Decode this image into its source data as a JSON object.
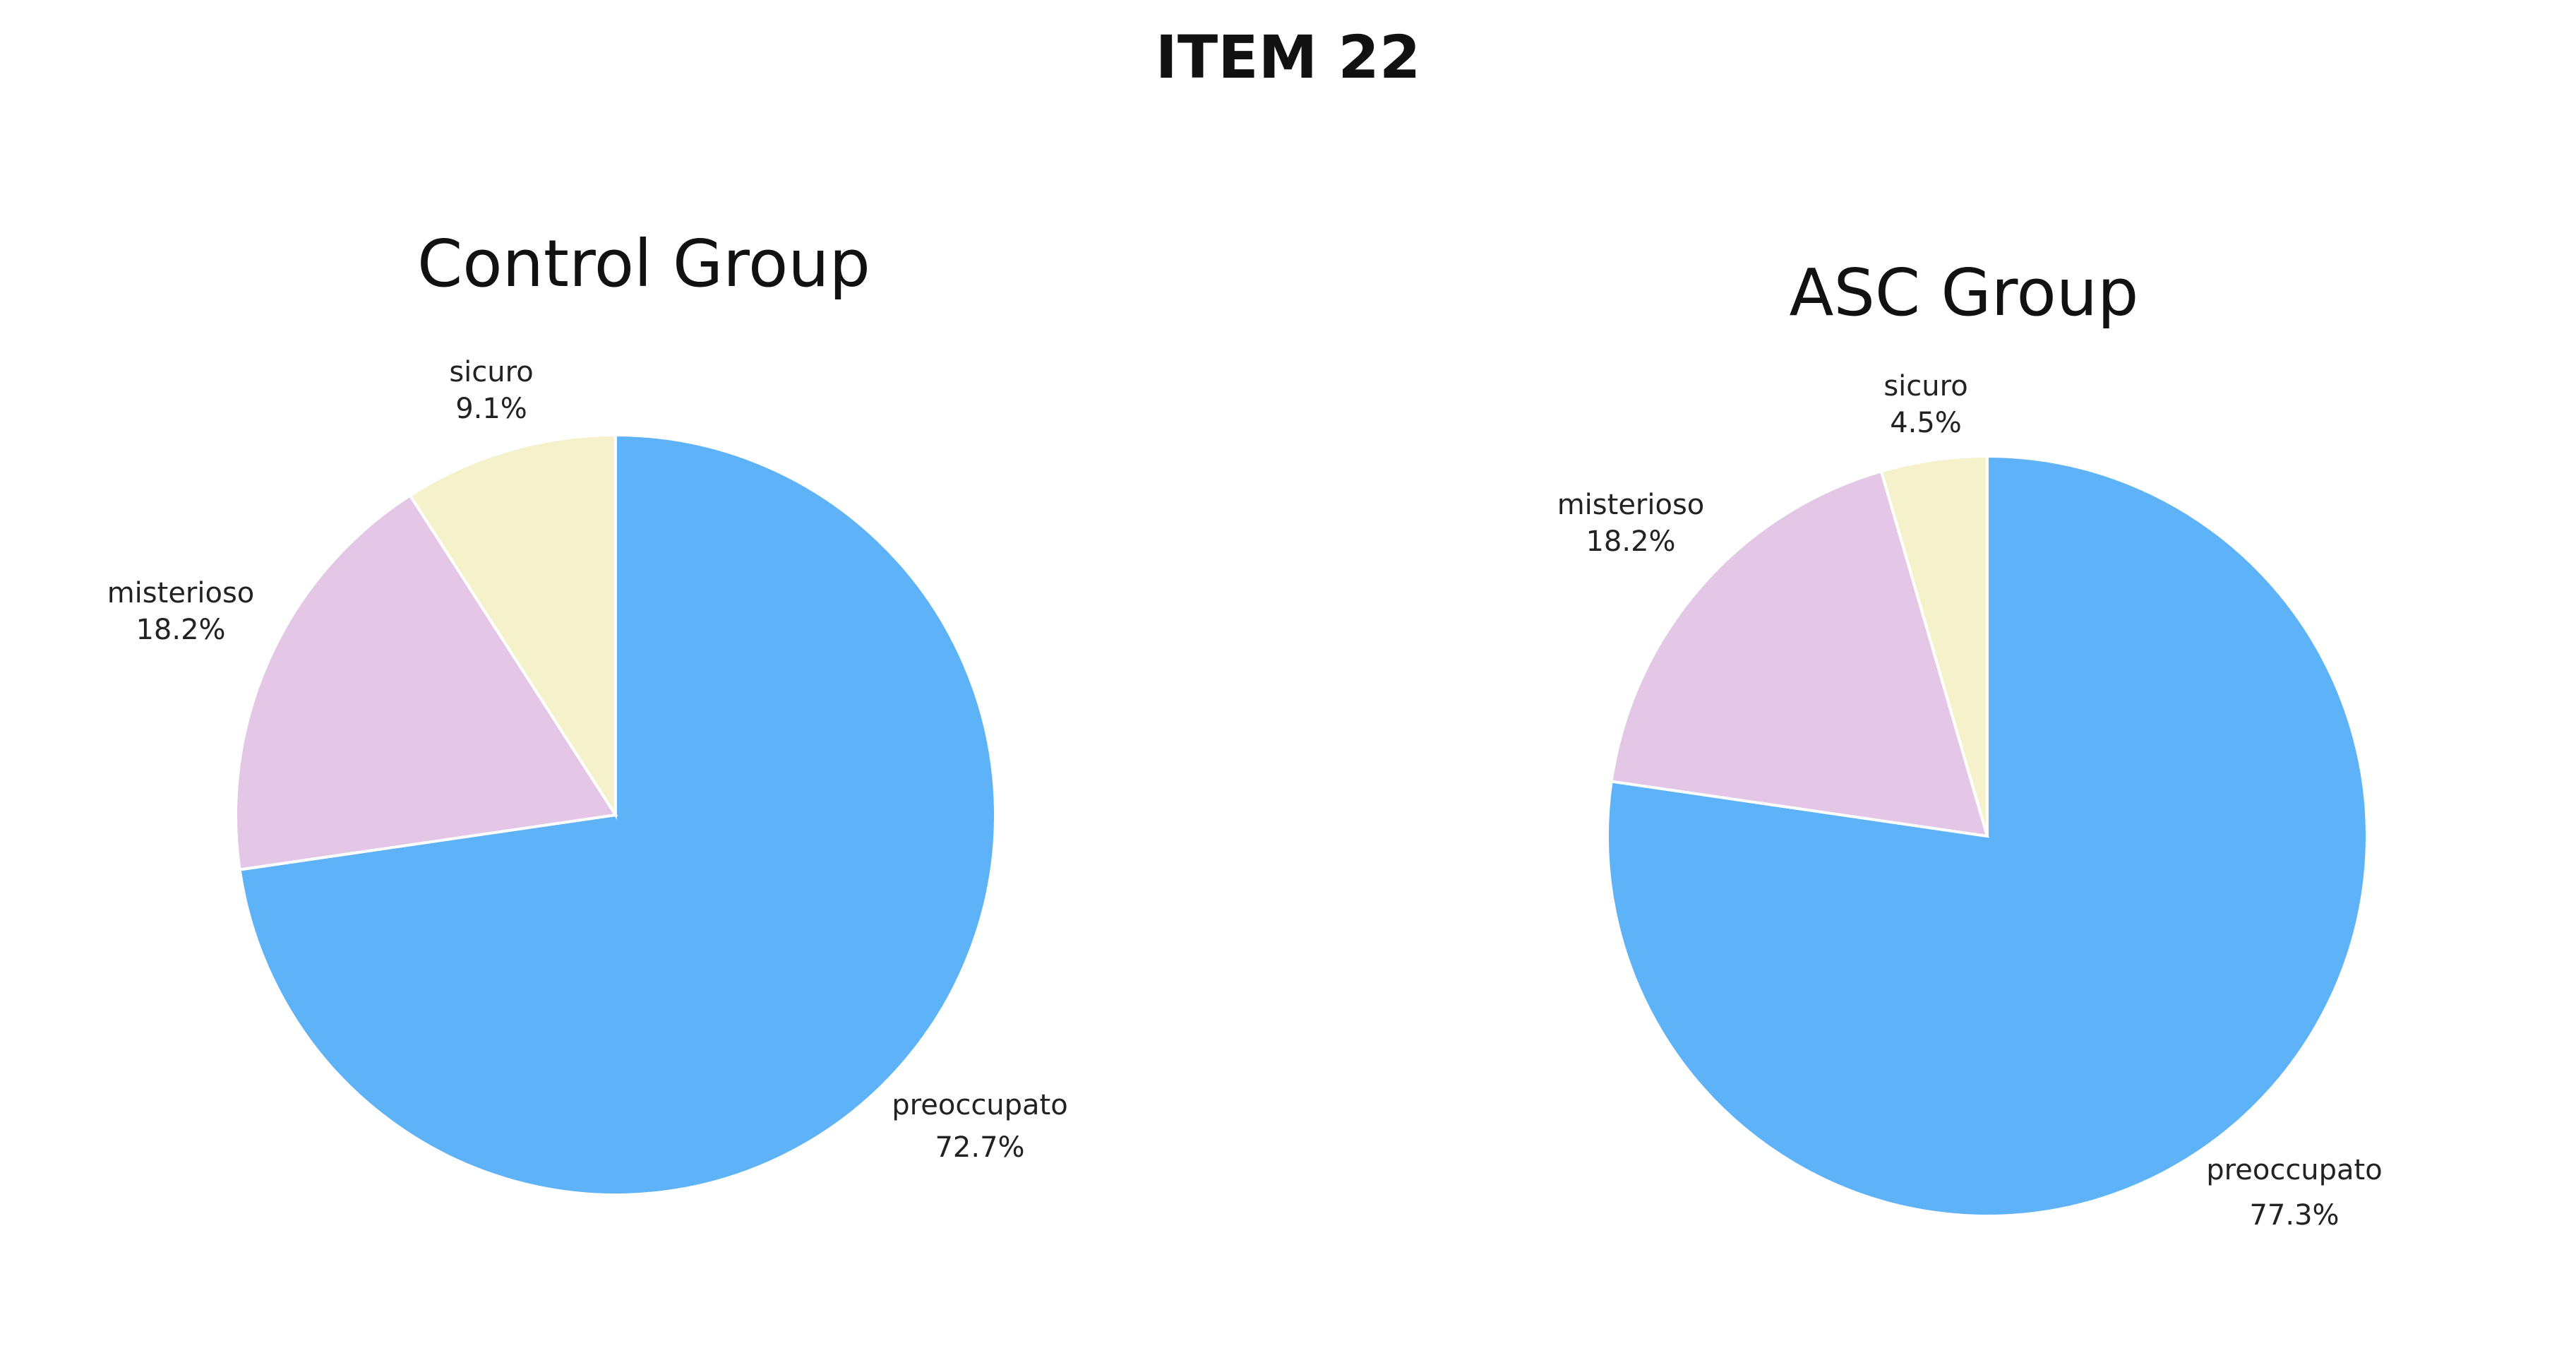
{
  "page": {
    "title": "ITEM 22"
  },
  "chart_data": [
    {
      "type": "pie",
      "title": "Control Group",
      "categories": [
        "preoccupato",
        "misterioso",
        "sicuro"
      ],
      "values": [
        72.7,
        18.2,
        9.1
      ],
      "value_labels": [
        "72.7%",
        "18.2%",
        "9.1%"
      ],
      "colors": [
        "#5EB2F8",
        "#E4C6E6",
        "#F5F1CA"
      ],
      "start_angle_deg": 0,
      "direction": "clockwise-from-top"
    },
    {
      "type": "pie",
      "title": "ASC Group",
      "categories": [
        "preoccupato",
        "misterioso",
        "sicuro"
      ],
      "values": [
        77.3,
        18.2,
        4.5
      ],
      "value_labels": [
        "77.3%",
        "18.2%",
        "4.5%"
      ],
      "colors": [
        "#5EB2F8",
        "#E4C6E6",
        "#F5F1CA"
      ],
      "start_angle_deg": 0,
      "direction": "clockwise-from-top"
    }
  ]
}
